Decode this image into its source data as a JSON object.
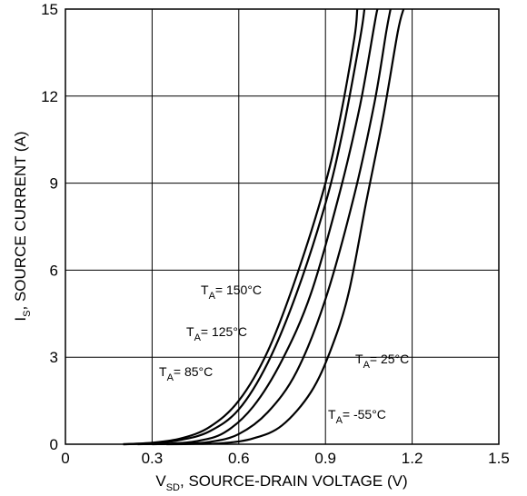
{
  "chart_data": {
    "type": "line",
    "xlabel": {
      "main": "V",
      "sub": "SD",
      "rest": ", SOURCE-DRAIN VOLTAGE (V)"
    },
    "ylabel": {
      "main": "I",
      "sub": "S",
      "rest": ", SOURCE CURRENT (A)"
    },
    "xlim": [
      0,
      1.5
    ],
    "ylim": [
      0,
      15
    ],
    "xticks": [
      0,
      0.3,
      0.6,
      0.9,
      1.2,
      1.5
    ],
    "xtick_labels": [
      "0",
      "0.3",
      "0.6",
      "0.9",
      "1.2",
      "1.5"
    ],
    "yticks": [
      0,
      3,
      6,
      9,
      12,
      15
    ],
    "ytick_labels": [
      "0",
      "3",
      "6",
      "9",
      "12",
      "15"
    ],
    "grid": true,
    "series": [
      {
        "name": "150",
        "points": [
          [
            0.2,
            0.0
          ],
          [
            0.3,
            0.05
          ],
          [
            0.4,
            0.2
          ],
          [
            0.5,
            0.6
          ],
          [
            0.6,
            1.5
          ],
          [
            0.7,
            3.2
          ],
          [
            0.8,
            5.8
          ],
          [
            0.9,
            9.0
          ],
          [
            0.95,
            11.2
          ],
          [
            1.0,
            14.0
          ],
          [
            1.01,
            15.0
          ]
        ]
      },
      {
        "name": "125",
        "points": [
          [
            0.2,
            0.0
          ],
          [
            0.3,
            0.03
          ],
          [
            0.4,
            0.15
          ],
          [
            0.5,
            0.45
          ],
          [
            0.6,
            1.2
          ],
          [
            0.7,
            2.8
          ],
          [
            0.8,
            5.2
          ],
          [
            0.9,
            8.3
          ],
          [
            0.96,
            10.8
          ],
          [
            1.02,
            14.0
          ],
          [
            1.035,
            15.0
          ]
        ]
      },
      {
        "name": "85",
        "points": [
          [
            0.25,
            0.0
          ],
          [
            0.35,
            0.02
          ],
          [
            0.45,
            0.1
          ],
          [
            0.55,
            0.4
          ],
          [
            0.65,
            1.3
          ],
          [
            0.75,
            2.9
          ],
          [
            0.85,
            5.2
          ],
          [
            0.95,
            8.7
          ],
          [
            1.02,
            11.7
          ],
          [
            1.07,
            14.5
          ],
          [
            1.08,
            15.0
          ]
        ]
      },
      {
        "name": "25",
        "points": [
          [
            0.3,
            0.0
          ],
          [
            0.4,
            0.02
          ],
          [
            0.5,
            0.08
          ],
          [
            0.6,
            0.35
          ],
          [
            0.7,
            1.1
          ],
          [
            0.8,
            2.5
          ],
          [
            0.9,
            5.0
          ],
          [
            1.0,
            8.6
          ],
          [
            1.07,
            11.8
          ],
          [
            1.11,
            14.2
          ],
          [
            1.125,
            15.0
          ]
        ]
      },
      {
        "name": "-55",
        "points": [
          [
            0.35,
            0.0
          ],
          [
            0.45,
            0.01
          ],
          [
            0.55,
            0.04
          ],
          [
            0.65,
            0.2
          ],
          [
            0.75,
            0.65
          ],
          [
            0.85,
            1.8
          ],
          [
            0.92,
            3.3
          ],
          [
            0.98,
            5.2
          ],
          [
            1.04,
            8.3
          ],
          [
            1.1,
            11.3
          ],
          [
            1.15,
            14.2
          ],
          [
            1.17,
            15.0
          ]
        ]
      }
    ],
    "annotations": [
      {
        "id": "150",
        "T": "T",
        "sub": "A",
        "text": "= 150°C"
      },
      {
        "id": "125",
        "T": "T",
        "sub": "A",
        "text": "= 125°C"
      },
      {
        "id": "85",
        "T": "T",
        "sub": "A",
        "text": "= 85°C"
      },
      {
        "id": "25",
        "T": "T",
        "sub": "A",
        "text": "= 25°C"
      },
      {
        "id": "-55",
        "T": "T",
        "sub": "A",
        "text": "= -55°C"
      }
    ]
  }
}
